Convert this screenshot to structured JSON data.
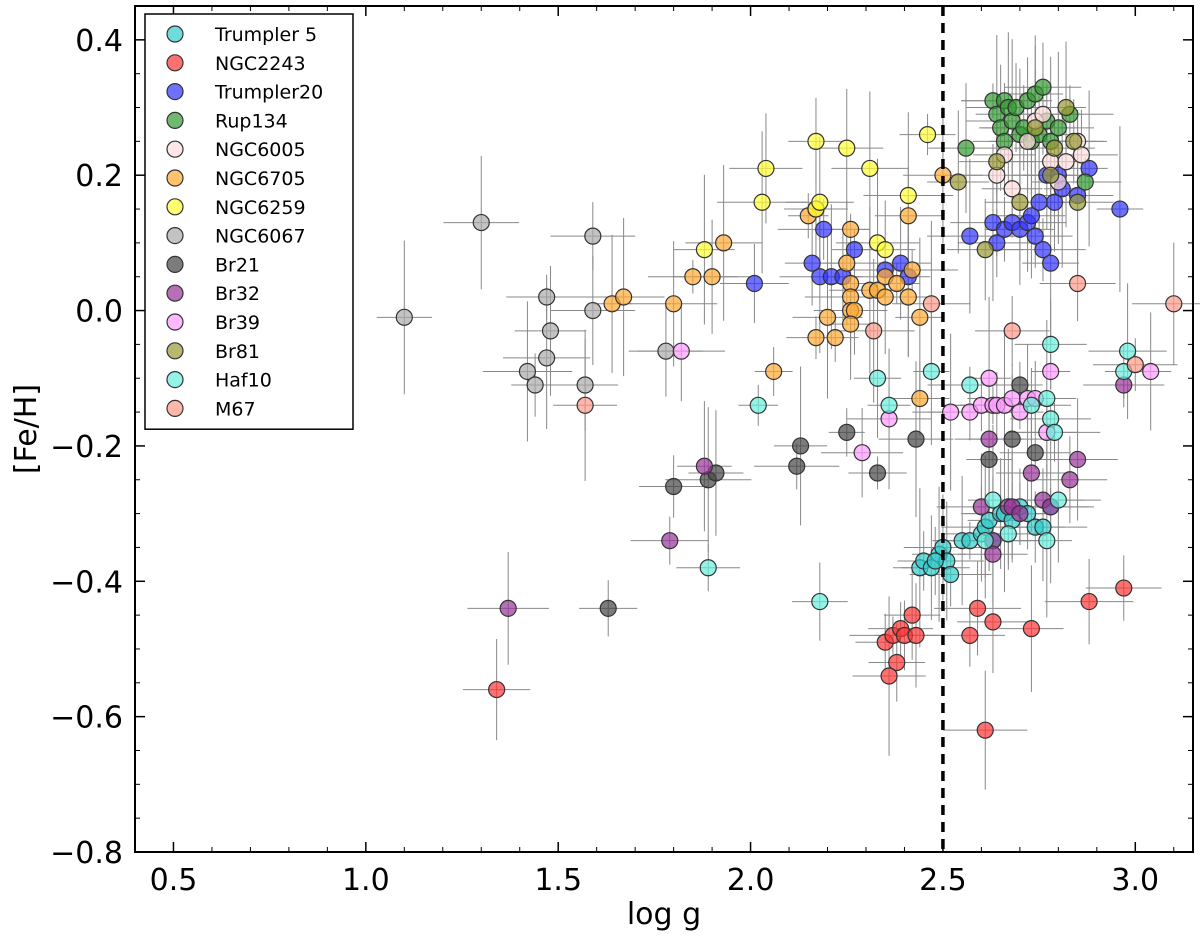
{
  "chart_data": {
    "type": "scatter",
    "title": "",
    "xlabel": "log g",
    "ylabel": "[Fe/H]",
    "xlim": [
      0.4,
      3.15
    ],
    "ylim": [
      -0.8,
      0.45
    ],
    "xticks": [
      0.5,
      1.0,
      1.5,
      2.0,
      2.5,
      3.0
    ],
    "xtick_labels": [
      "0.5",
      "1.0",
      "1.5",
      "2.0",
      "2.5",
      "3.0"
    ],
    "yticks": [
      -0.8,
      -0.6,
      -0.4,
      -0.2,
      0.0,
      0.2,
      0.4
    ],
    "ytick_labels": [
      "−0.8",
      "−0.6",
      "−0.4",
      "−0.2",
      "0.0",
      "0.2",
      "0.4"
    ],
    "vline": 2.5,
    "grid": false,
    "legend_position": "top-left",
    "series": [
      {
        "name": "Trumpler 5",
        "color": "#33cccc",
        "points": [
          [
            2.44,
            -0.38
          ],
          [
            2.45,
            -0.37
          ],
          [
            2.47,
            -0.38
          ],
          [
            2.49,
            -0.36
          ],
          [
            2.5,
            -0.35
          ],
          [
            2.51,
            -0.37
          ],
          [
            2.52,
            -0.39
          ],
          [
            2.55,
            -0.34
          ],
          [
            2.57,
            -0.34
          ],
          [
            2.6,
            -0.33
          ],
          [
            2.61,
            -0.32
          ],
          [
            2.62,
            -0.31
          ],
          [
            2.63,
            -0.34
          ],
          [
            2.65,
            -0.3
          ],
          [
            2.66,
            -0.3
          ],
          [
            2.68,
            -0.31
          ],
          [
            2.7,
            -0.29
          ],
          [
            2.72,
            -0.3
          ],
          [
            2.74,
            -0.32
          ],
          [
            2.76,
            -0.32
          ],
          [
            2.78,
            -0.29
          ],
          [
            2.48,
            -0.37
          ]
        ]
      },
      {
        "name": "NGC2243",
        "color": "#ff3333",
        "points": [
          [
            1.34,
            -0.56
          ],
          [
            2.35,
            -0.49
          ],
          [
            2.37,
            -0.48
          ],
          [
            2.38,
            -0.52
          ],
          [
            2.36,
            -0.54
          ],
          [
            2.39,
            -0.47
          ],
          [
            2.4,
            -0.48
          ],
          [
            2.42,
            -0.45
          ],
          [
            2.43,
            -0.48
          ],
          [
            2.57,
            -0.48
          ],
          [
            2.59,
            -0.44
          ],
          [
            2.61,
            -0.62
          ],
          [
            2.63,
            -0.46
          ],
          [
            2.73,
            -0.47
          ],
          [
            2.88,
            -0.43
          ],
          [
            2.97,
            -0.41
          ]
        ]
      },
      {
        "name": "Trumpler20",
        "color": "#3333ff",
        "points": [
          [
            2.01,
            0.04
          ],
          [
            2.16,
            0.07
          ],
          [
            2.18,
            0.05
          ],
          [
            2.21,
            0.05
          ],
          [
            2.24,
            0.05
          ],
          [
            2.27,
            0.09
          ],
          [
            2.19,
            0.12
          ],
          [
            2.35,
            0.06
          ],
          [
            2.39,
            0.07
          ],
          [
            2.41,
            0.05
          ],
          [
            2.57,
            0.11
          ],
          [
            2.63,
            0.13
          ],
          [
            2.64,
            0.1
          ],
          [
            2.66,
            0.12
          ],
          [
            2.68,
            0.13
          ],
          [
            2.7,
            0.12
          ],
          [
            2.72,
            0.13
          ],
          [
            2.74,
            0.11
          ],
          [
            2.76,
            0.09
          ],
          [
            2.78,
            0.07
          ],
          [
            2.79,
            0.16
          ],
          [
            2.81,
            0.18
          ],
          [
            2.85,
            0.17
          ],
          [
            2.88,
            0.21
          ],
          [
            2.96,
            0.15
          ],
          [
            2.73,
            0.14
          ],
          [
            2.75,
            0.16
          ],
          [
            2.77,
            0.2
          ],
          [
            2.8,
            0.2
          ]
        ]
      },
      {
        "name": "Rup134",
        "color": "#339933",
        "points": [
          [
            2.56,
            0.24
          ],
          [
            2.63,
            0.31
          ],
          [
            2.64,
            0.29
          ],
          [
            2.65,
            0.27
          ],
          [
            2.66,
            0.31
          ],
          [
            2.67,
            0.3
          ],
          [
            2.68,
            0.28
          ],
          [
            2.69,
            0.3
          ],
          [
            2.7,
            0.26
          ],
          [
            2.71,
            0.27
          ],
          [
            2.72,
            0.31
          ],
          [
            2.73,
            0.25
          ],
          [
            2.74,
            0.32
          ],
          [
            2.75,
            0.26
          ],
          [
            2.76,
            0.33
          ],
          [
            2.77,
            0.28
          ],
          [
            2.78,
            0.25
          ],
          [
            2.8,
            0.27
          ],
          [
            2.83,
            0.29
          ],
          [
            2.87,
            0.19
          ],
          [
            2.66,
            0.25
          ]
        ]
      },
      {
        "name": "NGC6005",
        "color": "#ffdddd",
        "points": [
          [
            2.64,
            0.2
          ],
          [
            2.66,
            0.23
          ],
          [
            2.68,
            0.18
          ],
          [
            2.72,
            0.25
          ],
          [
            2.74,
            0.28
          ],
          [
            2.76,
            0.29
          ],
          [
            2.78,
            0.22
          ],
          [
            2.8,
            0.19
          ],
          [
            2.82,
            0.22
          ],
          [
            2.85,
            0.25
          ],
          [
            2.86,
            0.23
          ]
        ]
      },
      {
        "name": "NGC6705",
        "color": "#ffaa33",
        "points": [
          [
            1.64,
            0.01
          ],
          [
            1.67,
            0.02
          ],
          [
            1.8,
            0.01
          ],
          [
            1.85,
            0.05
          ],
          [
            1.9,
            0.05
          ],
          [
            1.93,
            0.1
          ],
          [
            2.06,
            -0.09
          ],
          [
            2.15,
            0.14
          ],
          [
            2.17,
            0.15
          ],
          [
            2.2,
            -0.01
          ],
          [
            2.22,
            -0.04
          ],
          [
            2.25,
            0.07
          ],
          [
            2.26,
            0.04
          ],
          [
            2.26,
            0.02
          ],
          [
            2.26,
            0.0
          ],
          [
            2.27,
            0.0
          ],
          [
            2.26,
            -0.02
          ],
          [
            2.31,
            0.03
          ],
          [
            2.33,
            0.03
          ],
          [
            2.35,
            0.05
          ],
          [
            2.35,
            0.02
          ],
          [
            2.38,
            0.04
          ],
          [
            2.41,
            0.02
          ],
          [
            2.41,
            0.14
          ],
          [
            2.42,
            0.06
          ],
          [
            2.44,
            -0.13
          ],
          [
            2.26,
            0.12
          ],
          [
            2.17,
            -0.04
          ],
          [
            2.44,
            -0.01
          ],
          [
            2.5,
            0.2
          ]
        ]
      },
      {
        "name": "NGC6259",
        "color": "#ffff33",
        "points": [
          [
            1.88,
            0.09
          ],
          [
            2.03,
            0.16
          ],
          [
            2.04,
            0.21
          ],
          [
            2.17,
            0.25
          ],
          [
            2.17,
            0.15
          ],
          [
            2.18,
            0.16
          ],
          [
            2.25,
            0.24
          ],
          [
            2.31,
            0.21
          ],
          [
            2.33,
            0.1
          ],
          [
            2.35,
            0.09
          ],
          [
            2.41,
            0.17
          ],
          [
            2.46,
            0.26
          ]
        ]
      },
      {
        "name": "NGC6067",
        "color": "#aaaaaa",
        "points": [
          [
            1.1,
            -0.01
          ],
          [
            1.3,
            0.13
          ],
          [
            1.42,
            -0.09
          ],
          [
            1.44,
            -0.11
          ],
          [
            1.47,
            0.02
          ],
          [
            1.47,
            -0.07
          ],
          [
            1.48,
            -0.03
          ],
          [
            1.57,
            -0.11
          ],
          [
            1.59,
            0.0
          ],
          [
            1.59,
            0.11
          ],
          [
            1.78,
            -0.06
          ]
        ]
      },
      {
        "name": "Br21",
        "color": "#444444",
        "points": [
          [
            1.63,
            -0.44
          ],
          [
            1.8,
            -0.26
          ],
          [
            1.89,
            -0.25
          ],
          [
            1.91,
            -0.24
          ],
          [
            2.12,
            -0.23
          ],
          [
            2.13,
            -0.2
          ],
          [
            2.25,
            -0.18
          ],
          [
            2.33,
            -0.24
          ],
          [
            2.43,
            -0.19
          ],
          [
            2.62,
            -0.22
          ],
          [
            2.68,
            -0.19
          ],
          [
            2.7,
            -0.11
          ],
          [
            2.74,
            -0.21
          ]
        ]
      },
      {
        "name": "Br32",
        "color": "#993399",
        "points": [
          [
            1.37,
            -0.44
          ],
          [
            1.79,
            -0.34
          ],
          [
            1.88,
            -0.23
          ],
          [
            2.6,
            -0.29
          ],
          [
            2.62,
            -0.19
          ],
          [
            2.63,
            -0.34
          ],
          [
            2.63,
            -0.36
          ],
          [
            2.67,
            -0.29
          ],
          [
            2.68,
            -0.29
          ],
          [
            2.7,
            -0.3
          ],
          [
            2.73,
            -0.24
          ],
          [
            2.76,
            -0.28
          ],
          [
            2.78,
            -0.29
          ],
          [
            2.83,
            -0.25
          ],
          [
            2.85,
            -0.22
          ],
          [
            2.97,
            -0.11
          ]
        ]
      },
      {
        "name": "Br39",
        "color": "#ff99ff",
        "points": [
          [
            1.82,
            -0.06
          ],
          [
            2.29,
            -0.21
          ],
          [
            2.36,
            -0.16
          ],
          [
            2.52,
            -0.15
          ],
          [
            2.57,
            -0.15
          ],
          [
            2.6,
            -0.14
          ],
          [
            2.62,
            -0.1
          ],
          [
            2.63,
            -0.14
          ],
          [
            2.64,
            -0.14
          ],
          [
            2.66,
            -0.14
          ],
          [
            2.68,
            -0.13
          ],
          [
            2.7,
            -0.15
          ],
          [
            2.72,
            -0.13
          ],
          [
            2.74,
            -0.13
          ],
          [
            2.77,
            -0.18
          ],
          [
            2.78,
            -0.09
          ],
          [
            3.04,
            -0.09
          ]
        ]
      },
      {
        "name": "Br81",
        "color": "#999933",
        "points": [
          [
            2.54,
            0.19
          ],
          [
            2.61,
            0.09
          ],
          [
            2.64,
            0.22
          ],
          [
            2.7,
            0.16
          ],
          [
            2.74,
            0.27
          ],
          [
            2.78,
            0.2
          ],
          [
            2.79,
            0.24
          ],
          [
            2.82,
            0.3
          ],
          [
            2.85,
            0.16
          ],
          [
            2.84,
            0.25
          ]
        ]
      },
      {
        "name": "Haf10",
        "color": "#66eedd",
        "points": [
          [
            1.89,
            -0.38
          ],
          [
            2.02,
            -0.14
          ],
          [
            2.18,
            -0.43
          ],
          [
            2.33,
            -0.1
          ],
          [
            2.36,
            -0.14
          ],
          [
            2.47,
            -0.09
          ],
          [
            2.57,
            -0.11
          ],
          [
            2.73,
            -0.14
          ],
          [
            2.77,
            -0.13
          ],
          [
            2.78,
            -0.16
          ],
          [
            2.79,
            -0.18
          ],
          [
            2.78,
            -0.05
          ],
          [
            2.97,
            -0.09
          ],
          [
            2.98,
            -0.06
          ],
          [
            2.63,
            -0.28
          ],
          [
            2.61,
            -0.34
          ],
          [
            2.67,
            -0.33
          ],
          [
            2.77,
            -0.34
          ],
          [
            2.8,
            -0.28
          ]
        ]
      },
      {
        "name": "M67",
        "color": "#ff9988",
        "points": [
          [
            1.57,
            -0.14
          ],
          [
            2.32,
            -0.03
          ],
          [
            2.47,
            0.01
          ],
          [
            2.68,
            -0.03
          ],
          [
            2.85,
            0.04
          ],
          [
            3.0,
            -0.08
          ],
          [
            3.1,
            0.01
          ]
        ]
      }
    ]
  }
}
